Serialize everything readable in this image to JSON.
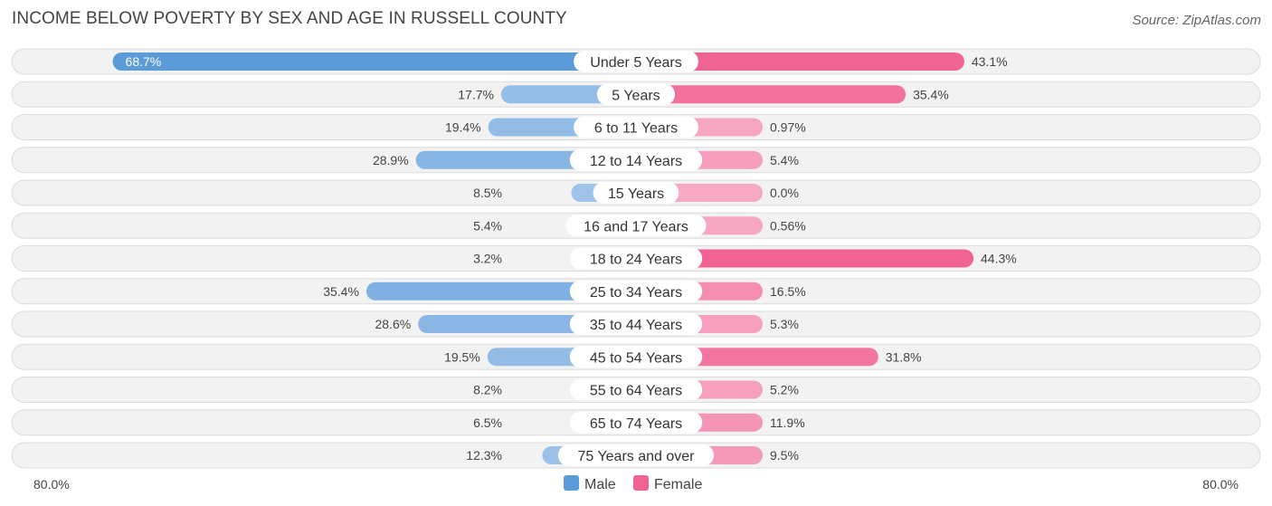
{
  "header": {
    "title": "INCOME BELOW POVERTY BY SEX AND AGE IN RUSSELL COUNTY",
    "source": "Source: ZipAtlas.com"
  },
  "colors": {
    "male_strong": "#5b9bd9",
    "male_light": "#a9c9ec",
    "female_strong": "#f06292",
    "female_light": "#f7a8c3"
  },
  "chart_data": {
    "type": "bar",
    "orientation": "horizontal-diverging",
    "axis_max": 80.0,
    "axis_left_label": "80.0%",
    "axis_right_label": "80.0%",
    "legend": [
      {
        "name": "Male",
        "color": "#5b9bd9"
      },
      {
        "name": "Female",
        "color": "#f06292"
      }
    ],
    "categories": [
      "Under 5 Years",
      "5 Years",
      "6 to 11 Years",
      "12 to 14 Years",
      "15 Years",
      "16 and 17 Years",
      "18 to 24 Years",
      "25 to 34 Years",
      "35 to 44 Years",
      "45 to 54 Years",
      "55 to 64 Years",
      "65 to 74 Years",
      "75 Years and over"
    ],
    "series": [
      {
        "name": "Male",
        "values": [
          68.7,
          17.7,
          19.4,
          28.9,
          8.5,
          5.4,
          3.2,
          35.4,
          28.6,
          19.5,
          8.2,
          6.5,
          12.3
        ],
        "labels": [
          "68.7%",
          "17.7%",
          "19.4%",
          "28.9%",
          "8.5%",
          "5.4%",
          "3.2%",
          "35.4%",
          "28.6%",
          "19.5%",
          "8.2%",
          "6.5%",
          "12.3%"
        ]
      },
      {
        "name": "Female",
        "values": [
          43.1,
          35.4,
          0.97,
          5.4,
          0.0,
          0.56,
          44.3,
          16.5,
          5.3,
          31.8,
          5.2,
          11.9,
          9.5
        ],
        "labels": [
          "43.1%",
          "35.4%",
          "0.97%",
          "5.4%",
          "0.0%",
          "0.56%",
          "44.3%",
          "16.5%",
          "5.3%",
          "31.8%",
          "5.2%",
          "11.9%",
          "9.5%"
        ]
      }
    ]
  }
}
